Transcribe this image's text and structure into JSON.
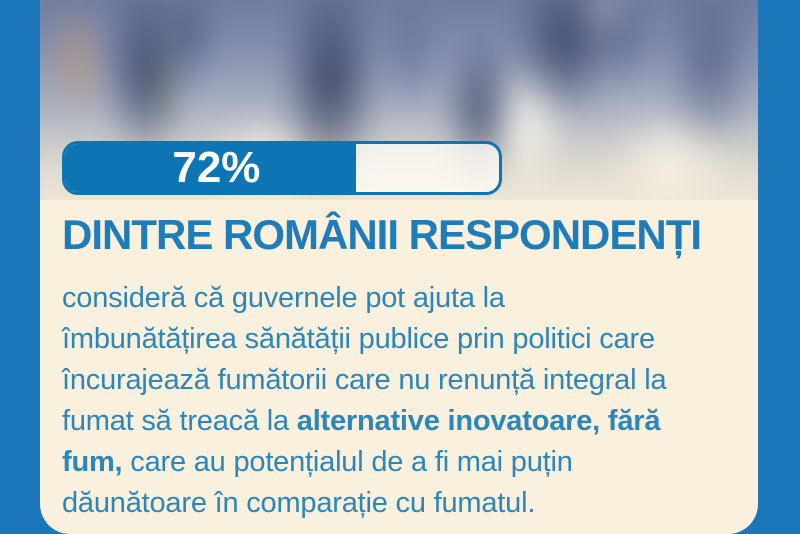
{
  "colors": {
    "frame_blue": "#1b76ba",
    "bar_blue": "#0d75b4",
    "heading_blue": "#1e7cba",
    "body_blue": "#2b86bb",
    "panel_cream": "#f9f0de",
    "progress_text": "#ffffff"
  },
  "progress": {
    "value_label": "72%",
    "percent": 72,
    "fill_percent_visual": 67
  },
  "heading": {
    "text": "DINTRE ROMÂNII RESPONDENȚI"
  },
  "body": {
    "lines": [
      [
        {
          "t": "consideră că guvernele pot ajuta la",
          "b": false
        }
      ],
      [
        {
          "t": "îmbunătățirea sănătății publice prin politici care",
          "b": false
        }
      ],
      [
        {
          "t": "încurajează fumătorii care nu renunță integral la",
          "b": false
        }
      ],
      [
        {
          "t": "fumat să treacă la ",
          "b": false
        },
        {
          "t": "alternative inovatoare, fără",
          "b": true
        }
      ],
      [
        {
          "t": "fum,",
          "b": true
        },
        {
          "t": " care au potențialul de a fi mai puțin",
          "b": false
        }
      ],
      [
        {
          "t": "dăunătoare în comparație cu fumatul.",
          "b": false
        }
      ]
    ]
  },
  "chart_data": {
    "type": "bar",
    "orientation": "horizontal",
    "categories": [
      "Dintre românii respondenți"
    ],
    "values": [
      72
    ],
    "value_labels": [
      "72%"
    ],
    "range": [
      0,
      100
    ],
    "title": "DINTRE ROMÂNII RESPONDENȚI",
    "legend": "none",
    "grid": false
  }
}
